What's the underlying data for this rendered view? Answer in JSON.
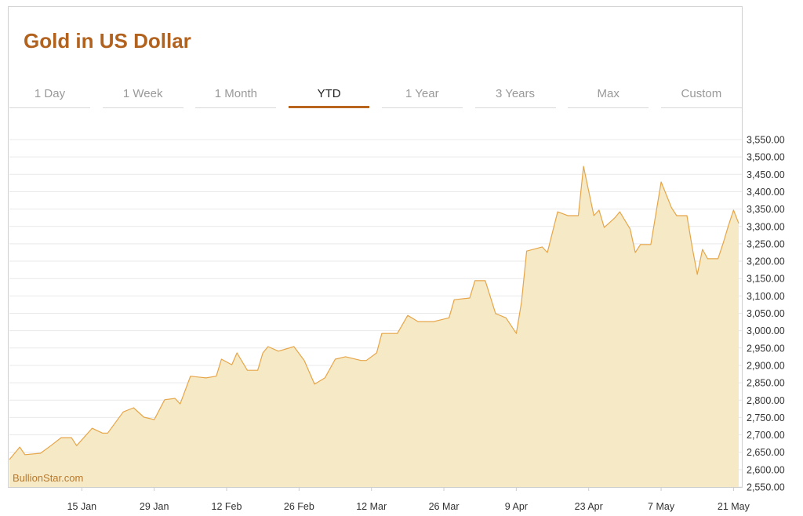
{
  "tabs": [
    "1 Day",
    "1 Week",
    "1 Month",
    "YTD",
    "1 Year",
    "3 Years",
    "Max",
    "Custom"
  ],
  "active_tab": 3,
  "chart_data": {
    "type": "area",
    "title": "Gold in US Dollar",
    "watermark": "BullionStar.com",
    "color": "#e6a548",
    "fill_color": "#f6eac6",
    "grid": true,
    "x": [
      "1 Jan",
      "3 Jan",
      "4 Jan",
      "7 Jan",
      "9 Jan",
      "11 Jan",
      "13 Jan",
      "14 Jan",
      "17 Jan",
      "19 Jan",
      "20 Jan",
      "23 Jan",
      "25 Jan",
      "27 Jan",
      "29 Jan",
      "31 Jan",
      "2 Feb",
      "3 Feb",
      "5 Feb",
      "8 Feb",
      "10 Feb",
      "11 Feb",
      "13 Feb",
      "14 Feb",
      "16 Feb",
      "18 Feb",
      "19 Feb",
      "20 Feb",
      "22 Feb",
      "25 Feb",
      "27 Feb",
      "1 Mar",
      "3 Mar",
      "5 Mar",
      "7 Mar",
      "10 Mar",
      "11 Mar",
      "13 Mar",
      "14 Mar",
      "17 Mar",
      "19 Mar",
      "21 Mar",
      "24 Mar",
      "27 Mar",
      "28 Mar",
      "31 Mar",
      "1 Apr",
      "3 Apr",
      "5 Apr",
      "7 Apr",
      "9 Apr",
      "10 Apr",
      "11 Apr",
      "14 Apr",
      "15 Apr",
      "17 Apr",
      "19 Apr",
      "21 Apr",
      "22 Apr",
      "24 Apr",
      "25 Apr",
      "26 Apr",
      "28 Apr",
      "29 Apr",
      "1 May",
      "2 May",
      "3 May",
      "5 May",
      "7 May",
      "9 May",
      "10 May",
      "12 May",
      "13 May",
      "14 May",
      "15 May",
      "16 May",
      "18 May",
      "19 May",
      "20 May",
      "21 May",
      "22 May"
    ],
    "values": [
      2629,
      2665,
      2643,
      2647,
      2669,
      2692,
      2692,
      2669,
      2719,
      2705,
      2705,
      2766,
      2778,
      2751,
      2744,
      2801,
      2805,
      2789,
      2869,
      2864,
      2869,
      2918,
      2902,
      2936,
      2886,
      2886,
      2936,
      2954,
      2941,
      2954,
      2914,
      2846,
      2864,
      2918,
      2925,
      2914,
      2914,
      2936,
      2992,
      2992,
      3044,
      3026,
      3026,
      3037,
      3089,
      3094,
      3144,
      3144,
      3049,
      3037,
      2992,
      3082,
      3229,
      3241,
      3225,
      3342,
      3331,
      3331,
      3473,
      3331,
      3347,
      3297,
      3324,
      3342,
      3293,
      3225,
      3248,
      3248,
      3428,
      3354,
      3331,
      3331,
      3241,
      3162,
      3234,
      3207,
      3207,
      3252,
      3302,
      3347,
      3309
    ],
    "xlim": [
      "1 Jan",
      "22 May"
    ],
    "xticks": [
      "15 Jan",
      "29 Jan",
      "12 Feb",
      "26 Feb",
      "12 Mar",
      "26 Mar",
      "9 Apr",
      "23 Apr",
      "7 May",
      "21 May"
    ],
    "ylim": [
      2550,
      3550
    ],
    "yticks": [
      {
        "value": 2550,
        "label": "2,550.00"
      },
      {
        "value": 2600,
        "label": "2,600.00"
      },
      {
        "value": 2650,
        "label": "2,650.00"
      },
      {
        "value": 2700,
        "label": "2,700.00"
      },
      {
        "value": 2750,
        "label": "2,750.00"
      },
      {
        "value": 2800,
        "label": "2,800.00"
      },
      {
        "value": 2850,
        "label": "2,850.00"
      },
      {
        "value": 2900,
        "label": "2,900.00"
      },
      {
        "value": 2950,
        "label": "2,950.00"
      },
      {
        "value": 3000,
        "label": "3,000.00"
      },
      {
        "value": 3050,
        "label": "3,050.00"
      },
      {
        "value": 3100,
        "label": "3,100.00"
      },
      {
        "value": 3150,
        "label": "3,150.00"
      },
      {
        "value": 3200,
        "label": "3,200.00"
      },
      {
        "value": 3250,
        "label": "3,250.00"
      },
      {
        "value": 3300,
        "label": "3,300.00"
      },
      {
        "value": 3350,
        "label": "3,350.00"
      },
      {
        "value": 3400,
        "label": "3,400.00"
      },
      {
        "value": 3450,
        "label": "3,450.00"
      },
      {
        "value": 3500,
        "label": "3,500.00"
      },
      {
        "value": 3550,
        "label": "3,550.00"
      }
    ]
  }
}
